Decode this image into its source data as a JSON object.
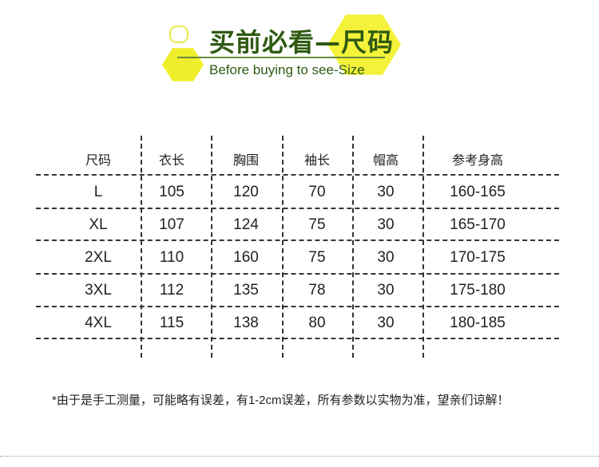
{
  "header": {
    "title": "买前必看—尺码",
    "subtitle": "Before buying to see-Size",
    "accent": "#2e5a12",
    "highlight": "#f2f230"
  },
  "table": {
    "columns": [
      "尺码",
      "衣长",
      "胸围",
      "袖长",
      "帽高",
      "参考身高"
    ],
    "rows": [
      [
        "L",
        "105",
        "120",
        "70",
        "30",
        "160-165"
      ],
      [
        "XL",
        "107",
        "124",
        "75",
        "30",
        "165-170"
      ],
      [
        "2XL",
        "110",
        "160",
        "75",
        "30",
        "170-175"
      ],
      [
        "3XL",
        "112",
        "135",
        "78",
        "30",
        "175-180"
      ],
      [
        "4XL",
        "115",
        "138",
        "80",
        "30",
        "180-185"
      ]
    ]
  },
  "note": "*由于是手工测量，可能略有误差，有1-2cm误差，所有参数以实物为准，望亲们谅解！"
}
